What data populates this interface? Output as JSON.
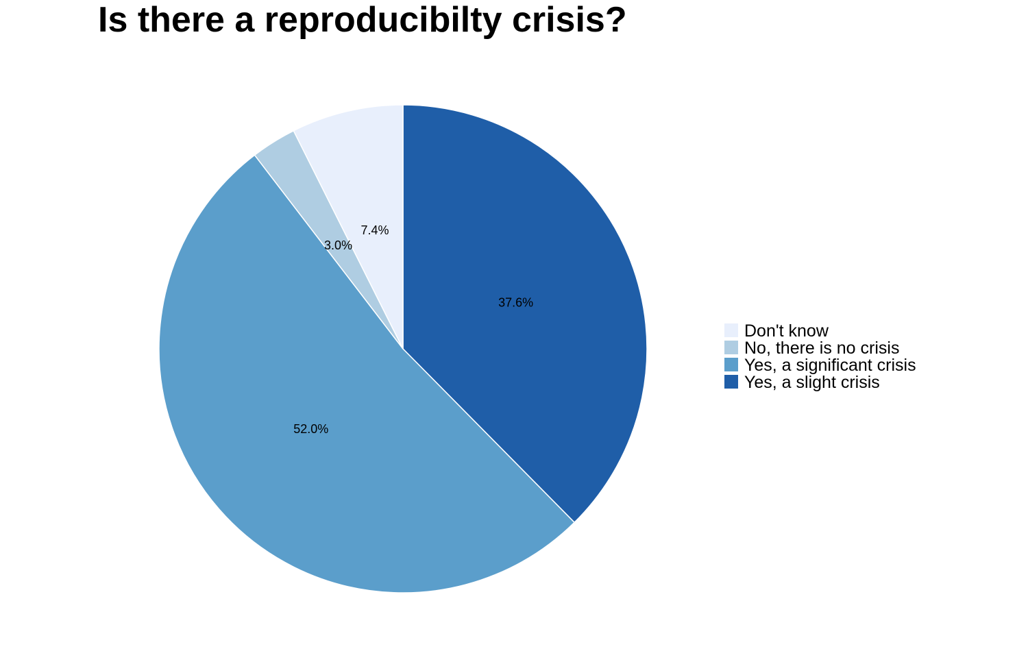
{
  "chart_data": {
    "type": "pie",
    "title": "Is there a reproducibilty crisis?",
    "start": "12 o'clock",
    "direction": "clockwise",
    "legend": "right",
    "slices": [
      {
        "label": "Yes, a slight crisis",
        "value": 37.6,
        "value_label": "37.6%",
        "color": "#1f5ea8"
      },
      {
        "label": "Yes, a significant crisis",
        "value": 52.0,
        "value_label": "52.0%",
        "color": "#5b9ecb"
      },
      {
        "label": "No, there is no crisis",
        "value": 3.0,
        "value_label": "3.0%",
        "color": "#afcde2"
      },
      {
        "label": "Don't know",
        "value": 7.4,
        "value_label": "7.4%",
        "color": "#e8effc"
      }
    ],
    "legend_entries": [
      {
        "label": "Don't know",
        "color": "#e8effc"
      },
      {
        "label": "No, there is no crisis",
        "color": "#afcde2"
      },
      {
        "label": "Yes, a significant crisis",
        "color": "#5b9ecb"
      },
      {
        "label": "Yes, a slight crisis",
        "color": "#1f5ea8"
      }
    ]
  }
}
